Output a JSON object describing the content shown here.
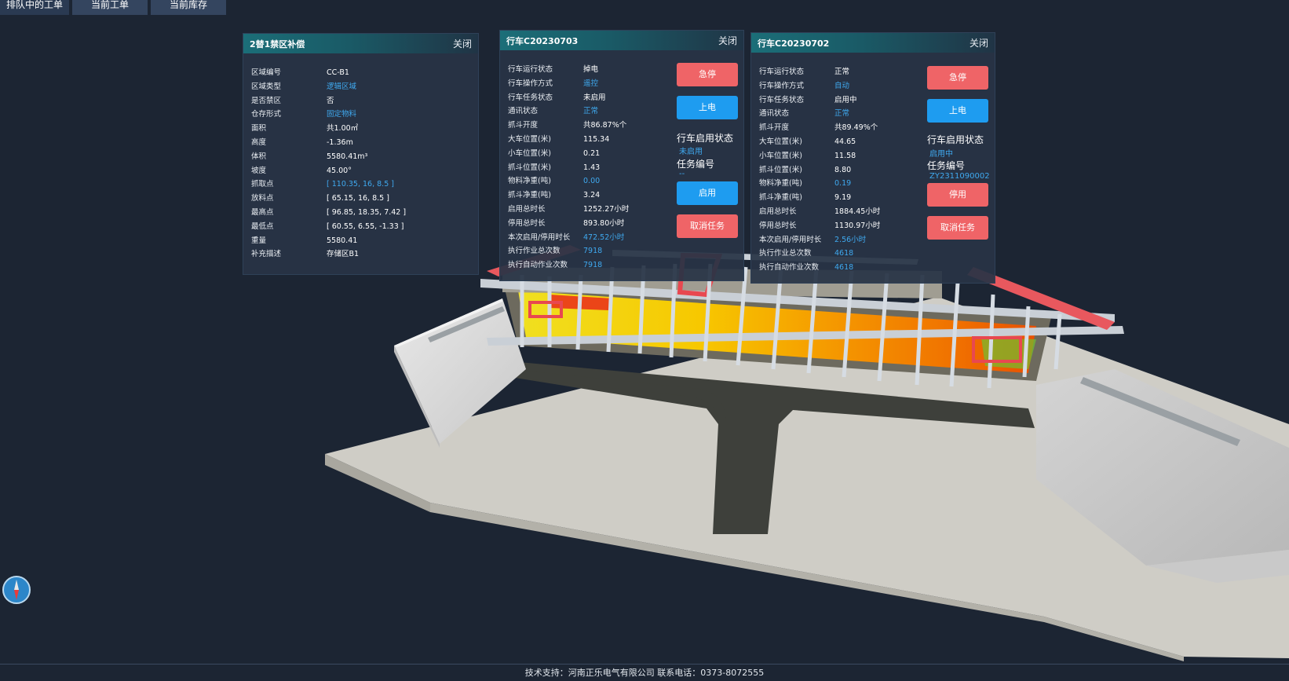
{
  "tabs": [
    {
      "label": "排队中的工单"
    },
    {
      "label": "当前工单"
    },
    {
      "label": "当前库存"
    }
  ],
  "zone_panel": {
    "title": "2替1禁区补偿",
    "close": "关闭",
    "rows": [
      {
        "k": "区域编号",
        "v": "CC-B1"
      },
      {
        "k": "区域类型",
        "v": "逻辑区域"
      },
      {
        "k": "是否禁区",
        "v": "否"
      },
      {
        "k": "仓存形式",
        "v": "固定物料"
      },
      {
        "k": "面积",
        "v": "共1.00㎡"
      },
      {
        "k": "高度",
        "v": "-1.36m"
      },
      {
        "k": "体积",
        "v": "5580.41m³"
      },
      {
        "k": "坡度",
        "v": "45.00°"
      },
      {
        "k": "抓取点",
        "v": "[ 110.35, 16, 8.5 ]"
      },
      {
        "k": "放料点",
        "v": "[ 65.15, 16, 8.5 ]"
      },
      {
        "k": "最高点",
        "v": "[ 96.85, 18.35, 7.42 ]"
      },
      {
        "k": "最低点",
        "v": "[ 60.55, 6.55, -1.33 ]"
      },
      {
        "k": "重量",
        "v": "5580.41"
      },
      {
        "k": "补充描述",
        "v": "存储区B1"
      }
    ]
  },
  "crane_a": {
    "title": "行车C20230703",
    "close": "关闭",
    "rows": [
      {
        "k": "行车运行状态",
        "v": "掉电"
      },
      {
        "k": "行车操作方式",
        "v": "遥控"
      },
      {
        "k": "行车任务状态",
        "v": "未启用"
      },
      {
        "k": "通讯状态",
        "v": "正常"
      },
      {
        "k": "抓斗开度",
        "v": "共86.87%个"
      },
      {
        "k": "大车位置(米)",
        "v": "115.34"
      },
      {
        "k": "小车位置(米)",
        "v": "0.21"
      },
      {
        "k": "抓斗位置(米)",
        "v": "1.43"
      },
      {
        "k": "物料净重(吨)",
        "v": "0.00"
      },
      {
        "k": "抓斗净重(吨)",
        "v": "3.24"
      },
      {
        "k": "启用总时长",
        "v": "1252.27小时"
      },
      {
        "k": "停用总时长",
        "v": "893.80小时"
      },
      {
        "k": "本次启用/停用时长",
        "v": "472.52小时"
      },
      {
        "k": "执行作业总次数",
        "v": "7918"
      },
      {
        "k": "执行自动作业次数",
        "v": "7918"
      }
    ],
    "btn_estop": "急停",
    "btn_power": "上电",
    "status_label": "行车启用状态",
    "status_value": "未启用",
    "task_label": "任务编号",
    "task_value": "--",
    "btn_enable": "启用",
    "btn_cancel": "取消任务"
  },
  "crane_b": {
    "title": "行车C20230702",
    "close": "关闭",
    "rows": [
      {
        "k": "行车运行状态",
        "v": "正常"
      },
      {
        "k": "行车操作方式",
        "v": "自动"
      },
      {
        "k": "行车任务状态",
        "v": "启用中"
      },
      {
        "k": "通讯状态",
        "v": "正常"
      },
      {
        "k": "抓斗开度",
        "v": "共89.49%个"
      },
      {
        "k": "大车位置(米)",
        "v": "44.65"
      },
      {
        "k": "小车位置(米)",
        "v": "11.58"
      },
      {
        "k": "抓斗位置(米)",
        "v": "8.80"
      },
      {
        "k": "物料净重(吨)",
        "v": "0.19"
      },
      {
        "k": "抓斗净重(吨)",
        "v": "9.19"
      },
      {
        "k": "启用总时长",
        "v": "1884.45小时"
      },
      {
        "k": "停用总时长",
        "v": "1130.97小时"
      },
      {
        "k": "本次启用/停用时长",
        "v": "2.56小时"
      },
      {
        "k": "执行作业总次数",
        "v": "4618"
      },
      {
        "k": "执行自动作业次数",
        "v": "4618"
      }
    ],
    "btn_estop": "急停",
    "btn_power": "上电",
    "status_label": "行车启用状态",
    "status_value": "启用中",
    "task_label": "任务编号",
    "task_value": "ZY2311090002",
    "btn_disable": "停用",
    "btn_cancel": "取消任务"
  },
  "footer": "技术支持：河南正乐电气有限公司 联系电话：0373-8072555",
  "colors": {
    "background": "#1c2533",
    "link_blue": "#3fa9ef",
    "button_red": "#ef6467",
    "button_blue": "#1e9cf0",
    "header_teal": "#1b6e78"
  }
}
